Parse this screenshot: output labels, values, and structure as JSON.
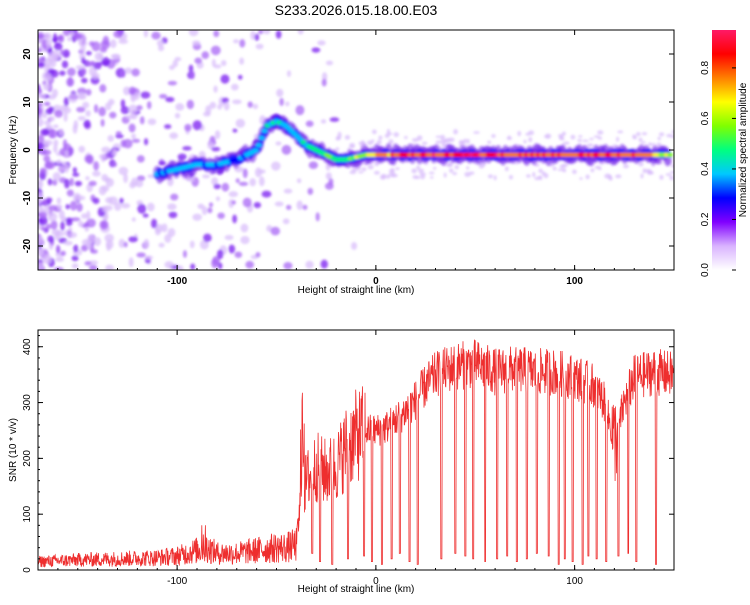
{
  "figure": {
    "title": "S233.2026.015.18.00.E03"
  },
  "colors": {
    "snr_line": "#ee2e2e",
    "frame": "#000000",
    "background": "#ffffff",
    "colorbar_stops": [
      "#ffffff",
      "#d9b3ff",
      "#8000ff",
      "#0000ff",
      "#00c8ff",
      "#00ff80",
      "#80ff00",
      "#ffff00",
      "#ff8000",
      "#ff0000",
      "#ff1a66"
    ]
  },
  "chart_data": [
    {
      "type": "heatmap",
      "title": "S233.2026.015.18.00.E03",
      "xlabel": "Height of straight line (km)",
      "ylabel": "Frequency (Hz)",
      "xlim": [
        -170,
        150
      ],
      "ylim": [
        -25,
        25
      ],
      "xticks": [
        "-100",
        "0",
        "100"
      ],
      "yticks": [
        "-20",
        "-10",
        "0",
        "10",
        "20"
      ],
      "ridge": {
        "description_x": [
          -110,
          -100,
          -90,
          -80,
          -70,
          -60,
          -55,
          -50,
          -45,
          -40,
          -35,
          -30,
          -25,
          -20,
          -15,
          -10,
          -5,
          0,
          10,
          20,
          40,
          60,
          80,
          100,
          120,
          140,
          148
        ],
        "frequency_hz": [
          -5,
          -4,
          -3,
          -3,
          -2,
          0,
          5,
          6,
          5,
          3,
          1,
          0,
          -1,
          -2,
          -2,
          -1.5,
          -1,
          -1,
          -1,
          -1,
          -1,
          -1,
          -1,
          -1,
          -1,
          -1,
          -1
        ],
        "amplitude": [
          0.35,
          0.4,
          0.38,
          0.35,
          0.35,
          0.4,
          0.45,
          0.45,
          0.42,
          0.4,
          0.45,
          0.5,
          0.55,
          0.5,
          0.55,
          0.6,
          0.65,
          0.75,
          0.85,
          0.85,
          0.9,
          0.9,
          0.85,
          0.85,
          0.85,
          0.75,
          0.6
        ]
      },
      "colorbar": {
        "label": "Normalized spectral amplitude",
        "range": [
          0,
          0.95
        ],
        "ticks": [
          "0.0",
          "0.2",
          "0.4",
          "0.6",
          "0.8"
        ]
      }
    },
    {
      "type": "line",
      "xlabel": "Height of straight line (km)",
      "ylabel": "SNR (10 * v/v)",
      "xlim": [
        -170,
        150
      ],
      "ylim": [
        0,
        430
      ],
      "xticks": [
        "-100",
        "0",
        "100"
      ],
      "yticks": [
        "0",
        "100",
        "200",
        "300",
        "400"
      ],
      "series": [
        {
          "name": "SNR",
          "x": [
            -170,
            -150,
            -130,
            -110,
            -100,
            -90,
            -85,
            -80,
            -70,
            -60,
            -50,
            -45,
            -40,
            -38,
            -35,
            -30,
            -25,
            -20,
            -15,
            -10,
            -5,
            0,
            5,
            10,
            15,
            20,
            25,
            30,
            40,
            50,
            60,
            70,
            80,
            90,
            100,
            110,
            115,
            120,
            125,
            130,
            140,
            150
          ],
          "y": [
            15,
            18,
            20,
            22,
            25,
            35,
            40,
            30,
            30,
            35,
            40,
            40,
            45,
            120,
            160,
            185,
            175,
            185,
            220,
            240,
            250,
            250,
            255,
            270,
            285,
            305,
            330,
            350,
            365,
            370,
            355,
            360,
            355,
            355,
            345,
            330,
            300,
            230,
            300,
            345,
            355,
            350
          ],
          "dropouts_x": [
            -32,
            -28,
            -22,
            -14,
            -6,
            -2,
            3,
            8,
            12,
            17,
            21,
            33,
            40,
            45,
            49,
            55,
            61,
            66,
            71,
            76,
            81,
            87,
            92,
            95,
            99,
            104,
            107,
            111,
            116,
            122,
            127,
            131,
            141
          ],
          "dropouts_y": [
            30,
            15,
            10,
            20,
            25,
            15,
            10,
            20,
            30,
            15,
            10,
            20,
            30,
            25,
            20,
            15,
            20,
            25,
            15,
            20,
            30,
            25,
            10,
            20,
            15,
            10,
            25,
            20,
            15,
            25,
            30,
            15,
            10
          ]
        }
      ]
    }
  ]
}
